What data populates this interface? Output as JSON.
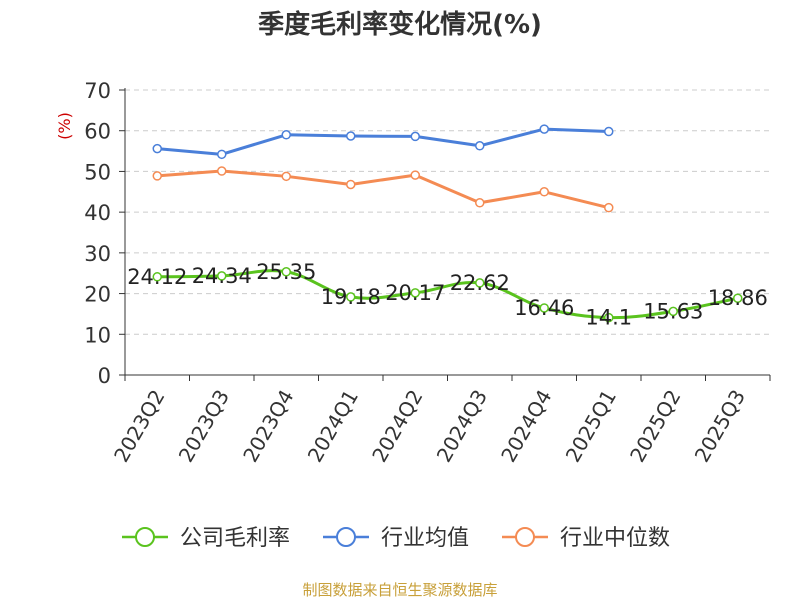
{
  "chart_data": {
    "type": "line",
    "title": "季度毛利率变化情况(%)",
    "ylabel": "(%)",
    "ylim": [
      0,
      70
    ],
    "yticks": [
      "0",
      "10",
      "20",
      "30",
      "40",
      "50",
      "60",
      "70"
    ],
    "categories": [
      "2023Q2",
      "2023Q3",
      "2023Q4",
      "2024Q1",
      "2024Q2",
      "2024Q3",
      "2024Q4",
      "2025Q1",
      "2025Q2",
      "2025Q3"
    ],
    "grid": true,
    "legend_position": "bottom",
    "series": [
      {
        "name": "公司毛利率",
        "color": "#5ac31e",
        "values": [
          24.12,
          24.34,
          25.35,
          19.18,
          20.17,
          22.62,
          16.46,
          14.1,
          15.63,
          18.86
        ],
        "labels": [
          "24.12",
          "24.34",
          "25.35",
          "19.18",
          "20.17",
          "22.62",
          "16.46",
          "14.1",
          "15.63",
          "18.86"
        ],
        "smooth": true
      },
      {
        "name": "行业均值",
        "color": "#4a7fd9",
        "values": [
          55.6,
          54.2,
          59.0,
          58.7,
          58.6,
          56.3,
          60.4,
          59.8,
          null,
          null
        ]
      },
      {
        "name": "行业中位数",
        "color": "#f48b53",
        "values": [
          48.9,
          50.1,
          48.8,
          46.8,
          49.1,
          42.3,
          45.0,
          41.1,
          null,
          null
        ]
      }
    ]
  },
  "colors": {
    "ylabel": "#cc0000",
    "axis": "#333333",
    "grid": "#cccccc"
  },
  "footer": {
    "source": "制图数据来自恒生聚源数据库"
  }
}
